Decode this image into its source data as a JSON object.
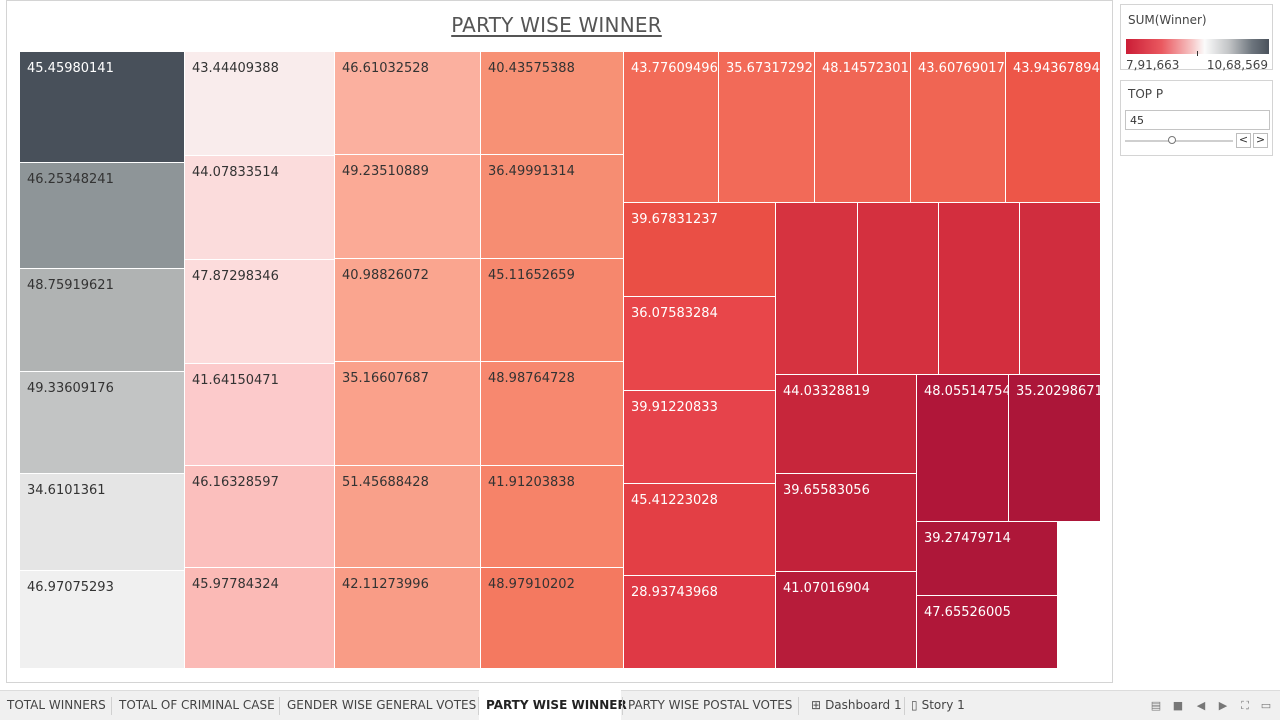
{
  "title": "PARTY WISE WINNER",
  "legend": {
    "title": "SUM(Winner)",
    "min_label": "7,91,663",
    "max_label": "10,68,569"
  },
  "parameter": {
    "title": "TOP P",
    "value": "45",
    "prev_label": "<",
    "next_label": ">"
  },
  "tiles": [
    {
      "label": "45.45980141",
      "color": "#48505a",
      "dark": true
    },
    {
      "label": "46.25348241",
      "color": "#8e9598",
      "dark": false
    },
    {
      "label": "48.75919621",
      "color": "#b0b3b3",
      "dark": false
    },
    {
      "label": "49.33609176",
      "color": "#c2c4c4",
      "dark": false
    },
    {
      "label": "34.6101361",
      "color": "#e5e5e5",
      "dark": false
    },
    {
      "label": "46.97075293",
      "color": "#f0f0f0",
      "dark": false
    },
    {
      "label": "43.44409388",
      "color": "#f9ecec",
      "dark": false
    },
    {
      "label": "44.07833514",
      "color": "#fbdcdc",
      "dark": false
    },
    {
      "label": "47.87298346",
      "color": "#fcdcdc",
      "dark": false
    },
    {
      "label": "41.64150471",
      "color": "#fccacb",
      "dark": false
    },
    {
      "label": "46.16328597",
      "color": "#fbbfbd",
      "dark": false
    },
    {
      "label": "45.97784324",
      "color": "#fbbab6",
      "dark": false
    },
    {
      "label": "46.61032528",
      "color": "#fbb09f",
      "dark": false
    },
    {
      "label": "49.23510889",
      "color": "#fbaa96",
      "dark": false
    },
    {
      "label": "40.98826072",
      "color": "#faa58f",
      "dark": false
    },
    {
      "label": "35.16607687",
      "color": "#faa18b",
      "dark": false
    },
    {
      "label": "51.45688428",
      "color": "#f9a08a",
      "dark": false
    },
    {
      "label": "42.11273996",
      "color": "#f99c86",
      "dark": false
    },
    {
      "label": "40.43575388",
      "color": "#f79175",
      "dark": false
    },
    {
      "label": "36.49991314",
      "color": "#f68d72",
      "dark": false
    },
    {
      "label": "45.11652659",
      "color": "#f6876d",
      "dark": false
    },
    {
      "label": "48.98764728",
      "color": "#f7886f",
      "dark": false
    },
    {
      "label": "41.91203838",
      "color": "#f68369",
      "dark": false
    },
    {
      "label": "48.97910202",
      "color": "#f47960",
      "dark": false
    },
    {
      "label": "43.77609496",
      "color": "#f26b58",
      "dark": true
    },
    {
      "label": "35.67317292",
      "color": "#f26a58",
      "dark": true
    },
    {
      "label": "48.14572301",
      "color": "#f06655",
      "dark": true
    },
    {
      "label": "43.60769017",
      "color": "#f06553",
      "dark": true
    },
    {
      "label": "43.94367894",
      "color": "#ed5648",
      "dark": true
    },
    {
      "label": "39.67831237",
      "color": "#ea4f45",
      "dark": true
    },
    {
      "label": "36.07583284",
      "color": "#e8464a",
      "dark": true
    },
    {
      "label": "39.91220833",
      "color": "#e6434b",
      "dark": true
    },
    {
      "label": "45.41223028",
      "color": "#e33f45",
      "dark": true
    },
    {
      "label": "28.93743968",
      "color": "#df3945",
      "dark": true
    },
    {
      "label": "",
      "color": "#d63340",
      "dark": true
    },
    {
      "label": "",
      "color": "#d4303f",
      "dark": true
    },
    {
      "label": "",
      "color": "#d32e3e",
      "dark": true
    },
    {
      "label": "",
      "color": "#d02d3e",
      "dark": true
    },
    {
      "label": "44.03328819",
      "color": "#c7263b",
      "dark": true
    },
    {
      "label": "39.65583056",
      "color": "#c2223a",
      "dark": true
    },
    {
      "label": "41.07016904",
      "color": "#b71c3a",
      "dark": true
    },
    {
      "label": "48.05514754",
      "color": "#b01639",
      "dark": true
    },
    {
      "label": "35.20298671",
      "color": "#ac1639",
      "dark": true
    },
    {
      "label": "39.27479714",
      "color": "#ae1739",
      "dark": true
    },
    {
      "label": "47.65526005",
      "color": "#b01739",
      "dark": true
    }
  ],
  "tabs": [
    {
      "label": "TOTAL WINNERS",
      "active": false,
      "icon": ""
    },
    {
      "label": "TOTAL OF CRIMINAL CASE",
      "active": false,
      "icon": ""
    },
    {
      "label": "GENDER WISE GENERAL VOTES",
      "active": false,
      "icon": ""
    },
    {
      "label": "PARTY WISE WINNER",
      "active": true,
      "icon": ""
    },
    {
      "label": "PARTY WISE POSTAL VOTES",
      "active": false,
      "icon": ""
    },
    {
      "label": "Dashboard 1",
      "active": false,
      "icon": "dashboard-icon"
    },
    {
      "label": "Story 1",
      "active": false,
      "icon": "story-icon"
    }
  ],
  "controls": [
    {
      "name": "sheet-sorter-icon",
      "glyph": "▤"
    },
    {
      "name": "filmstrip-icon",
      "glyph": "■"
    },
    {
      "name": "previous-sheet-icon",
      "glyph": "◀"
    },
    {
      "name": "next-sheet-icon",
      "glyph": "▶"
    },
    {
      "name": "presentation-mode-icon",
      "glyph": "⛶"
    },
    {
      "name": "device-preview-icon",
      "glyph": "▭"
    }
  ]
}
